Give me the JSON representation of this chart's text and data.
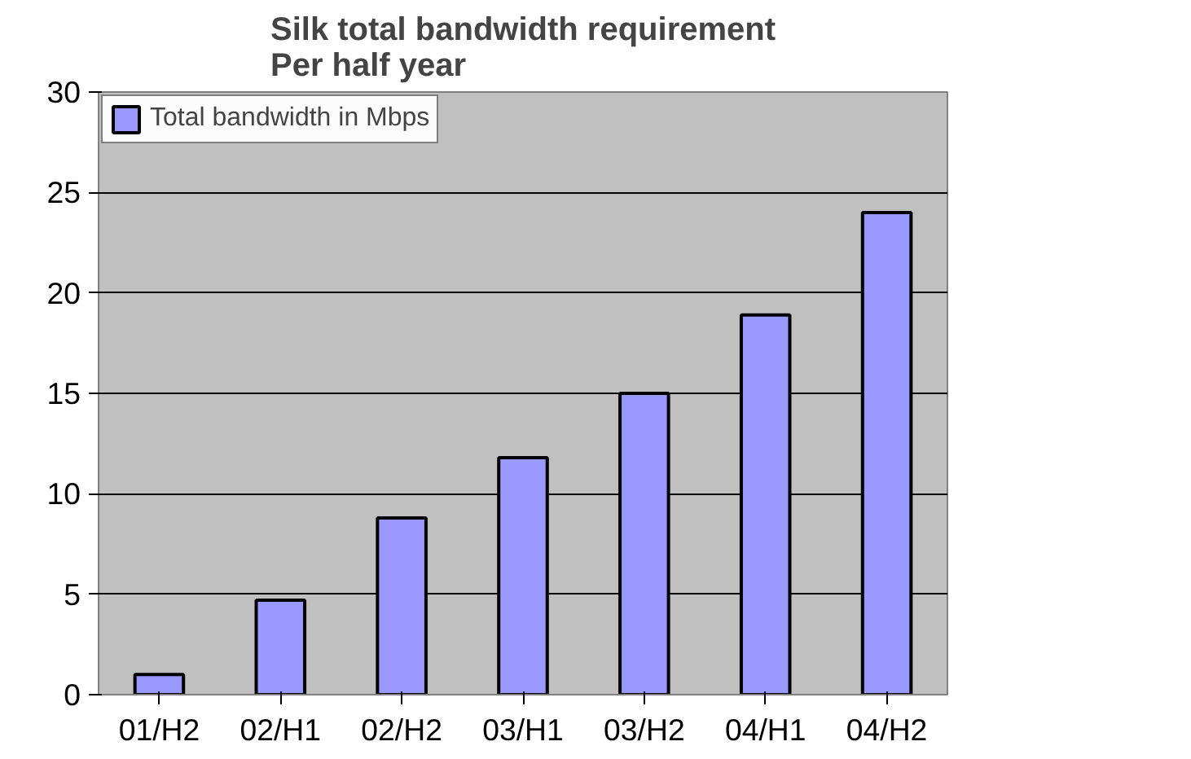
{
  "chart_data": {
    "type": "bar",
    "title": "Silk total bandwidth requirement\nPer half year",
    "categories": [
      "01/H2",
      "02/H1",
      "02/H2",
      "03/H1",
      "03/H2",
      "04/H1",
      "04/H2"
    ],
    "series": [
      {
        "name": "Total bandwidth in Mbps",
        "color": "#9999ff",
        "values": [
          1,
          4.7,
          8.8,
          11.8,
          15,
          18.9,
          24
        ]
      }
    ],
    "ylim": [
      0,
      30
    ],
    "yticks": [
      0,
      5,
      10,
      15,
      20,
      25,
      30
    ],
    "grid": "y",
    "legend": "top left"
  }
}
